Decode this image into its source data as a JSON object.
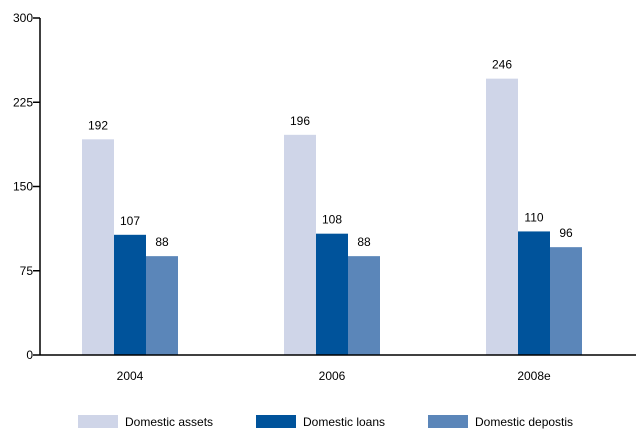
{
  "chart_data": {
    "type": "bar",
    "title": "",
    "xlabel": "",
    "ylabel": "",
    "categories": [
      "2004",
      "2006",
      "2008e"
    ],
    "series": [
      {
        "name": "Domestic assets",
        "values": [
          192,
          196,
          246
        ],
        "color": "#cfd5e8"
      },
      {
        "name": "Domestic loans",
        "values": [
          107,
          108,
          110
        ],
        "color": "#00539b"
      },
      {
        "name": "Domestic depostis",
        "values": [
          88,
          88,
          96
        ],
        "color": "#5b86b9"
      }
    ],
    "ylim": [
      0,
      300
    ],
    "yticks": [
      "0",
      "75",
      "150",
      "225",
      "300"
    ],
    "grid": false,
    "legend_position": "bottom"
  }
}
